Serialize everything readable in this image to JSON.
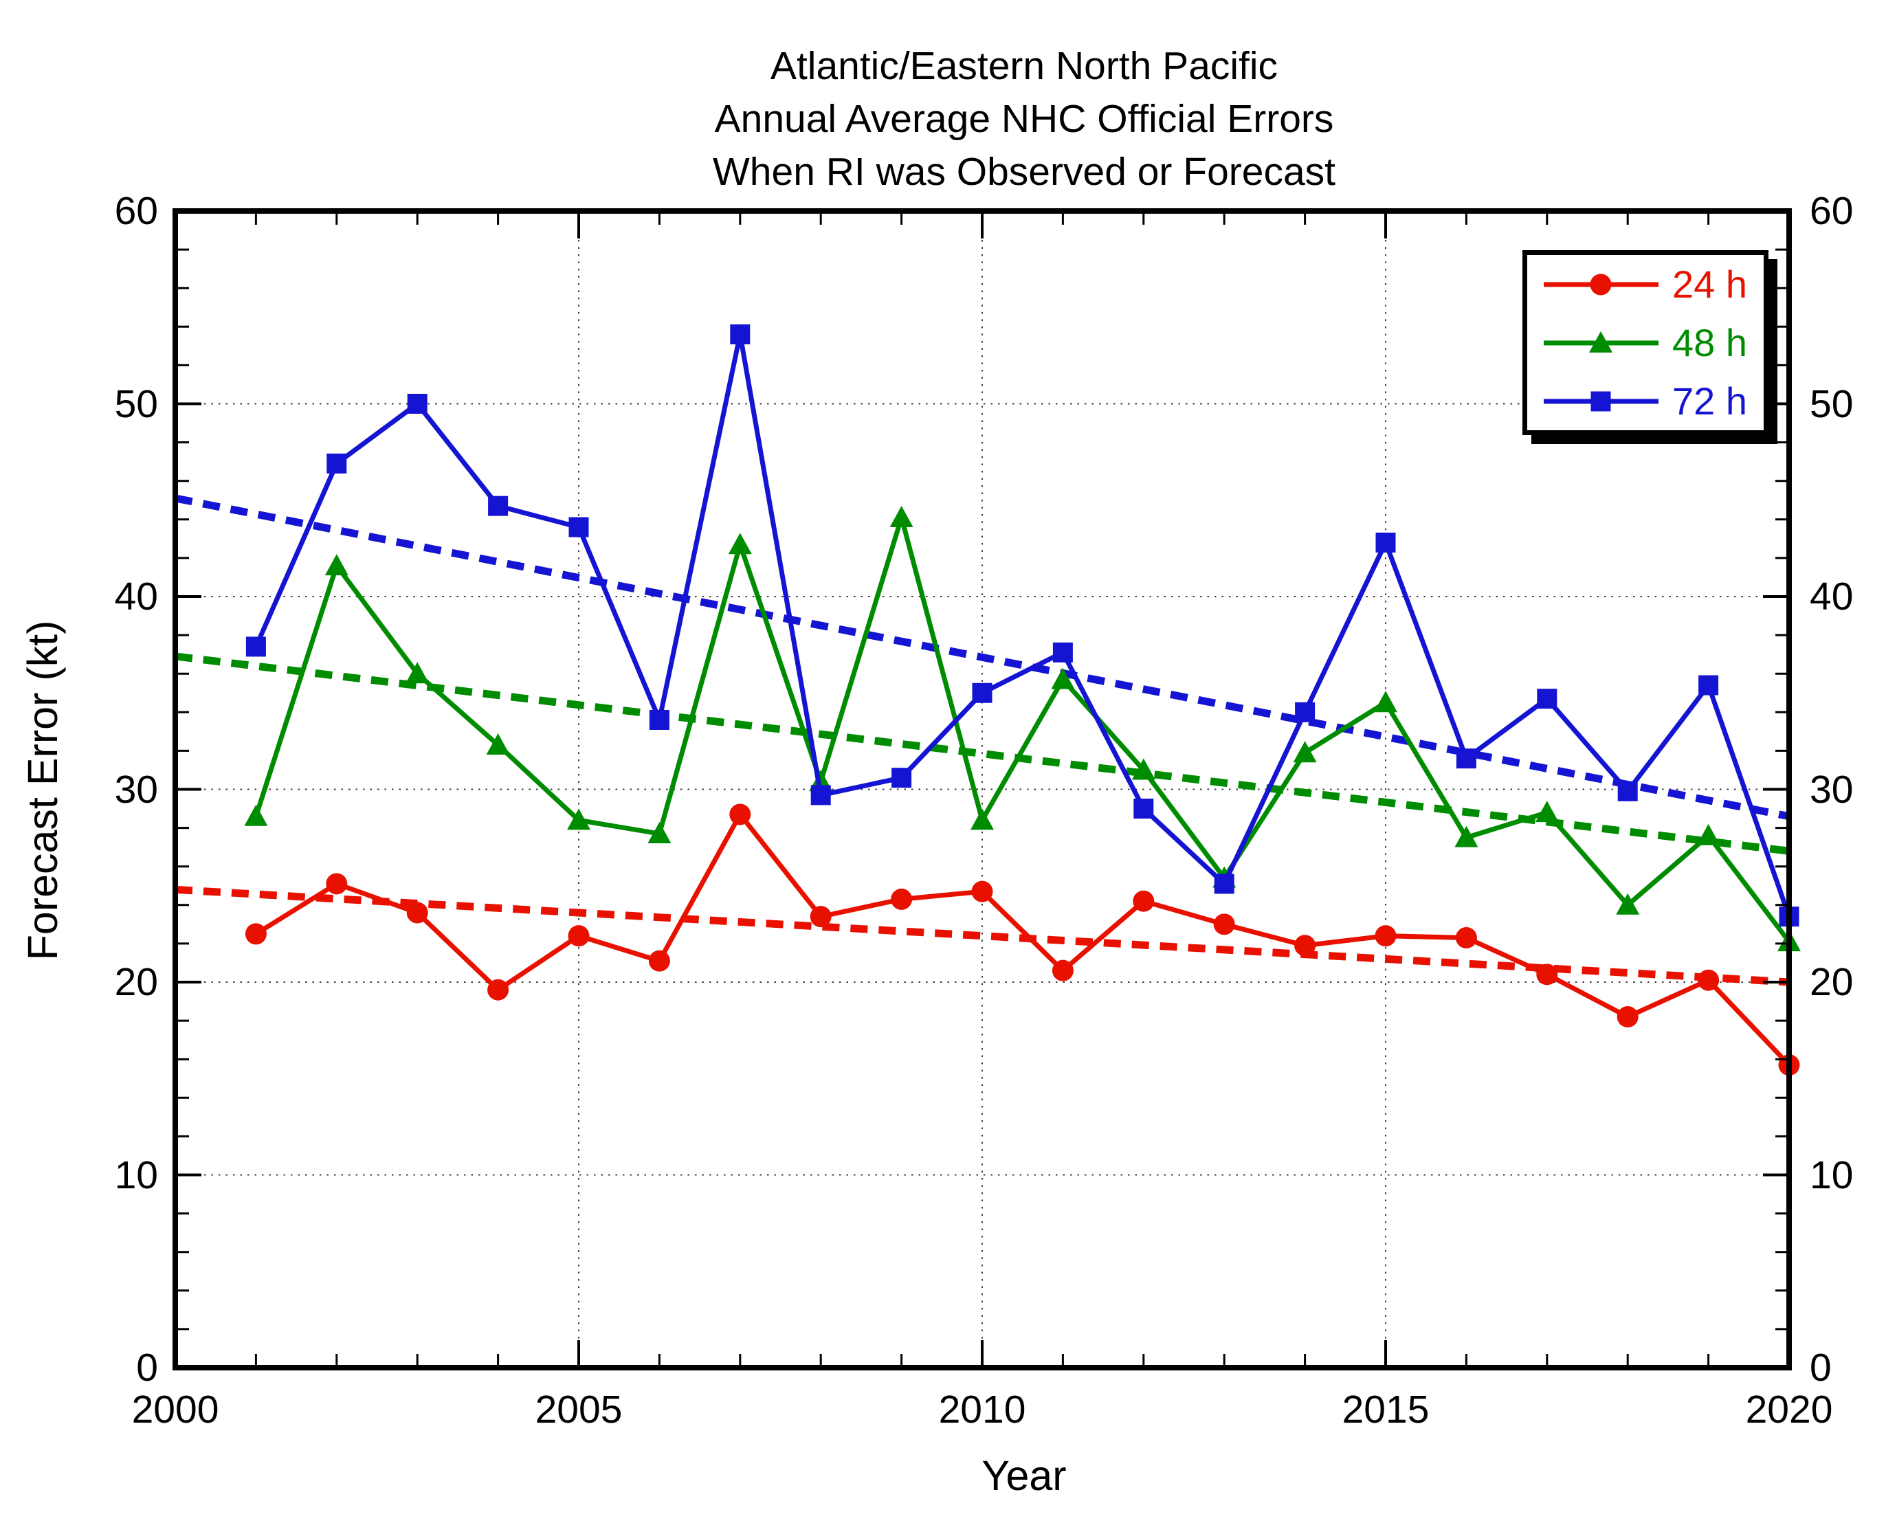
{
  "chart_data": {
    "type": "line",
    "title_lines": [
      "Atlantic/Eastern North Pacific",
      "Annual Average NHC Official Errors",
      "When RI was Observed or Forecast"
    ],
    "xlabel": "Year",
    "ylabel": "Forecast Error (kt)",
    "xlim": [
      2000,
      2020
    ],
    "ylim": [
      0,
      60
    ],
    "x_major_ticks": [
      2000,
      2005,
      2010,
      2015,
      2020
    ],
    "x_minor_step": 1,
    "y_major_ticks": [
      0,
      10,
      20,
      30,
      40,
      50,
      60
    ],
    "y_minor_step": 2,
    "x_gridlines": [
      2005,
      2010,
      2015
    ],
    "y_gridlines": [
      10,
      20,
      30,
      40,
      50
    ],
    "grid_style": "dotted",
    "legend_position": "top-right",
    "years": [
      2001,
      2002,
      2003,
      2004,
      2005,
      2006,
      2007,
      2008,
      2009,
      2010,
      2011,
      2012,
      2013,
      2014,
      2015,
      2016,
      2017,
      2018,
      2019,
      2020
    ],
    "series": [
      {
        "id": "24h",
        "name": "24 h",
        "marker": "circle",
        "color": "#e81100",
        "values": [
          22.5,
          25.1,
          23.6,
          19.6,
          22.4,
          21.1,
          28.7,
          23.4,
          24.3,
          24.7,
          20.6,
          24.2,
          23.0,
          21.9,
          22.4,
          22.3,
          20.4,
          18.2,
          20.1,
          15.7
        ]
      },
      {
        "id": "48h",
        "name": "48 h",
        "marker": "triangle",
        "color": "#008c00",
        "values": [
          28.6,
          41.6,
          36.0,
          32.3,
          28.4,
          27.7,
          42.7,
          30.4,
          44.1,
          28.4,
          35.7,
          31.0,
          25.4,
          31.9,
          34.5,
          27.5,
          28.8,
          24.0,
          27.6,
          22.1
        ]
      },
      {
        "id": "72h",
        "name": "72 h",
        "marker": "square",
        "color": "#1414d2",
        "values": [
          37.4,
          46.9,
          50.0,
          44.7,
          43.6,
          33.6,
          53.6,
          29.7,
          30.6,
          35.0,
          37.1,
          29.0,
          25.1,
          34.0,
          42.8,
          31.6,
          34.7,
          29.9,
          35.4,
          23.4
        ]
      }
    ],
    "trend_lines": [
      {
        "id": "24h",
        "color": "#e81100",
        "start": {
          "x": 2000,
          "y": 24.8
        },
        "end": {
          "x": 2020,
          "y": 20.0
        }
      },
      {
        "id": "48h",
        "color": "#008c00",
        "start": {
          "x": 2000,
          "y": 36.9
        },
        "end": {
          "x": 2020,
          "y": 26.8
        }
      },
      {
        "id": "72h",
        "color": "#1414d2",
        "start": {
          "x": 2000,
          "y": 45.1
        },
        "end": {
          "x": 2020,
          "y": 28.6
        }
      }
    ]
  }
}
